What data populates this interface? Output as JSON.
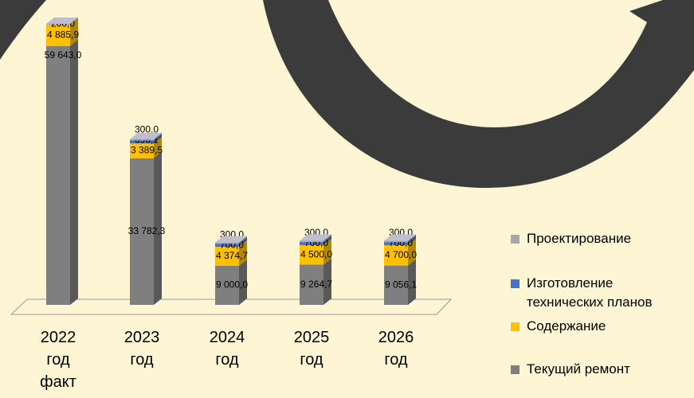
{
  "chart_data": {
    "type": "bar3d-stacked",
    "categories": [
      "2022 год факт",
      "2023 год",
      "2024 год",
      "2025 год",
      "2026 год"
    ],
    "series": [
      {
        "name": "Текущий ремонт",
        "color": "#7f7f7f",
        "values": [
          59643.0,
          33782.3,
          9000.0,
          9264.7,
          9056.1
        ],
        "value_labels": [
          "59 643,0",
          "33 782,3",
          "9 000,0",
          "9 264,7",
          "9 056,1"
        ]
      },
      {
        "name": "Содержание",
        "color": "#ffc000",
        "values": [
          4885.9,
          3389.5,
          4374.7,
          4500.0,
          4700.0
        ],
        "value_labels": [
          "4 885,9",
          "3 389,5",
          "4 374,7",
          "4 500,0",
          "4 700,0"
        ]
      },
      {
        "name": "Изготовление технических планов",
        "color": "#4472c4",
        "values": [
          null,
          696.1,
          700.0,
          700.0,
          700.0
        ],
        "value_labels": [
          null,
          "696,1",
          "700,0",
          "700,0",
          "700,0"
        ]
      },
      {
        "name": "Проектирование",
        "color": "#a5a5b4",
        "values": [
          200.0,
          300.0,
          300.0,
          300.0,
          300.0
        ],
        "value_labels": [
          "200,0",
          "300,0",
          "300,0",
          "300,0",
          "300,0"
        ]
      }
    ]
  }
}
